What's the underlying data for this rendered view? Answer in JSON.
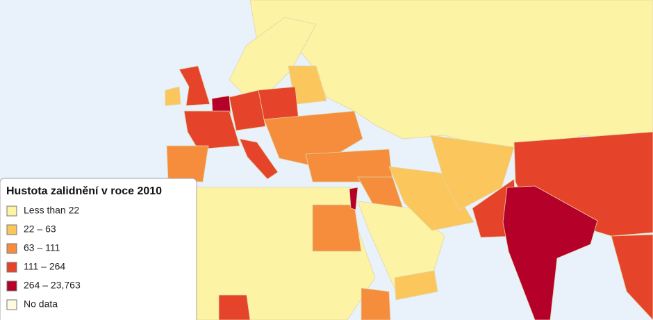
{
  "legend": {
    "title": "Hustota zalidnění v roce 2010",
    "items": [
      {
        "label": "Less than 22",
        "color": "#fdf3a4"
      },
      {
        "label": "22 – 63",
        "color": "#fbc65c"
      },
      {
        "label": "63 – 111",
        "color": "#f58d3d"
      },
      {
        "label": "111 – 264",
        "color": "#e6442a"
      },
      {
        "label": "264 – 23,763",
        "color": "#b5002a"
      },
      {
        "label": "No data",
        "color": "#fffbe2"
      }
    ]
  }
}
